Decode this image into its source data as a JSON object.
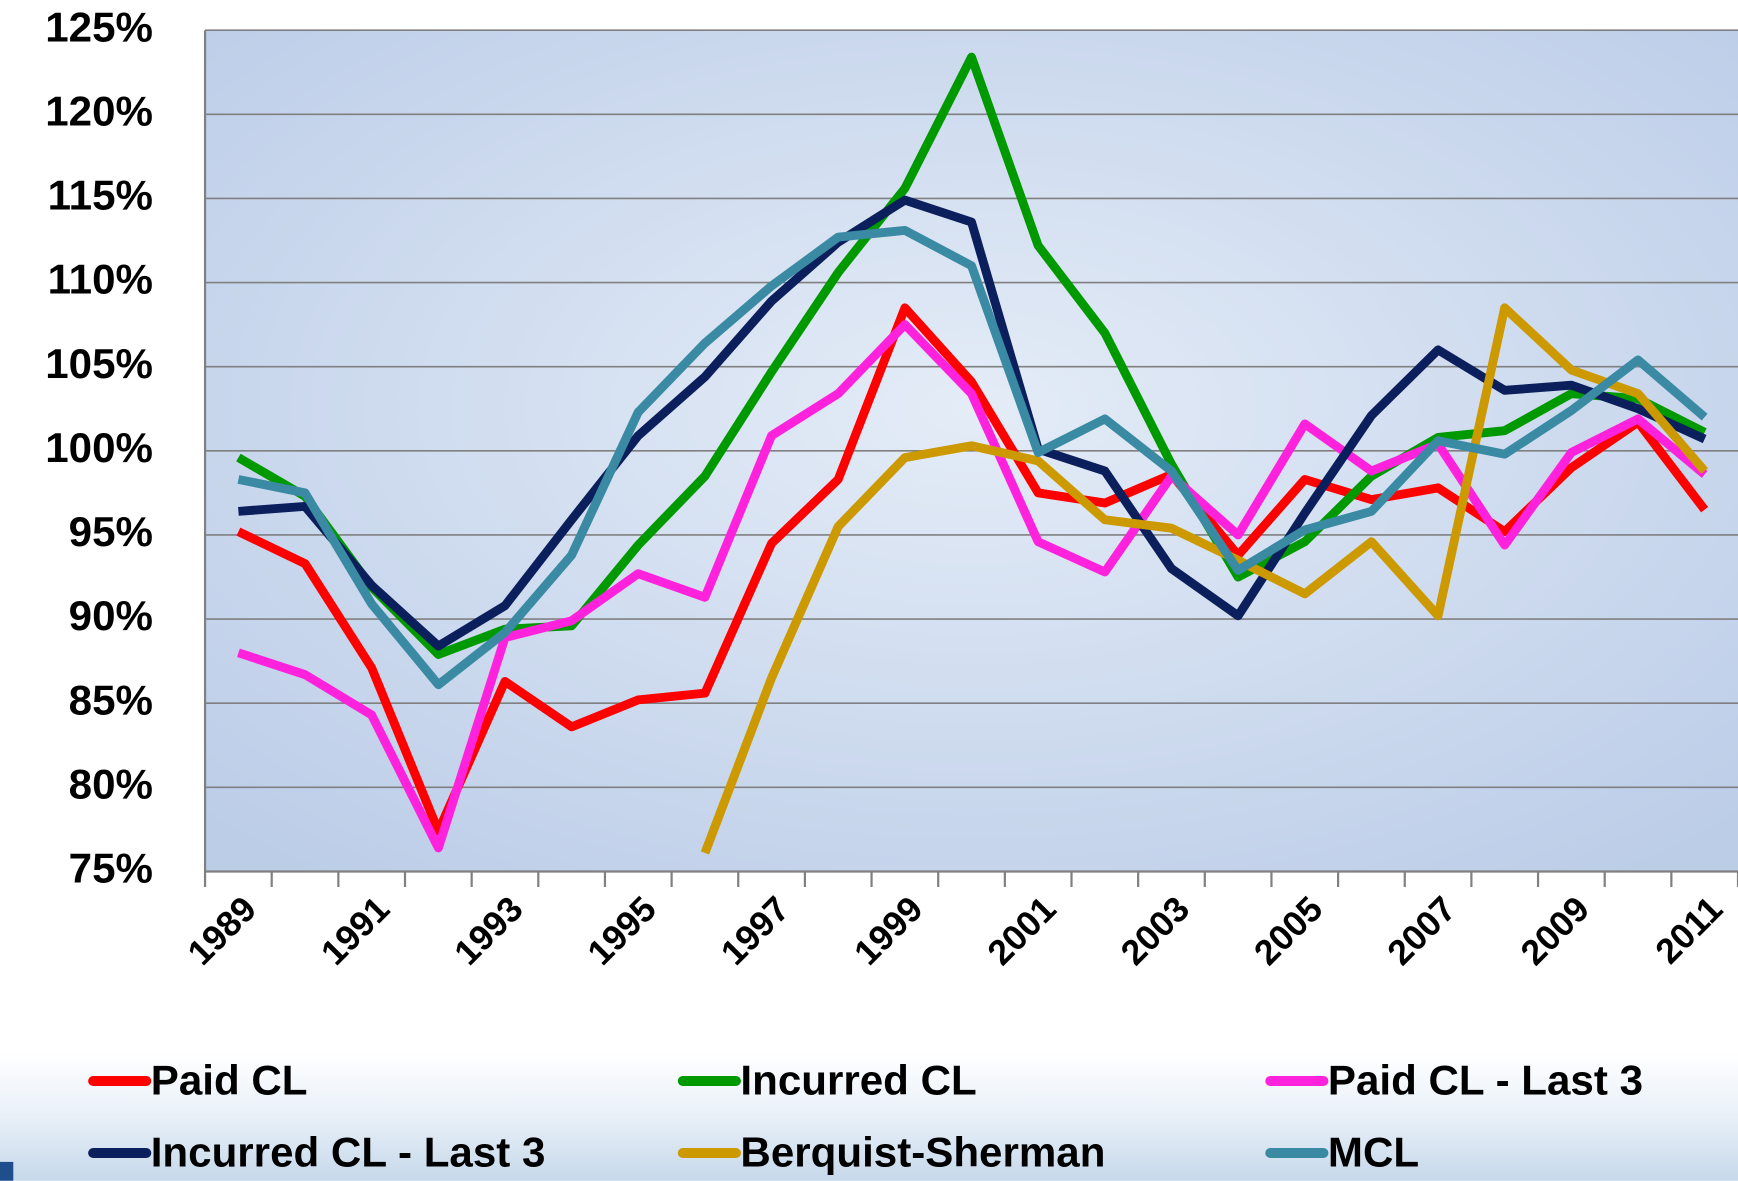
{
  "chart_data": {
    "type": "line",
    "categories": [
      "1989",
      null,
      "1991",
      null,
      "1993",
      null,
      "1995",
      null,
      "1997",
      null,
      "1999",
      null,
      "2001",
      null,
      "2003",
      null,
      "2005",
      null,
      "2007",
      null,
      "2009",
      null,
      "2011"
    ],
    "ylim": [
      75,
      125
    ],
    "yticks": [
      {
        "value": 75,
        "label": "75%"
      },
      {
        "value": 80,
        "label": "80%"
      },
      {
        "value": 85,
        "label": "85%"
      },
      {
        "value": 90,
        "label": "90%"
      },
      {
        "value": 95,
        "label": "95%"
      },
      {
        "value": 100,
        "label": "100%"
      },
      {
        "value": 105,
        "label": "105%"
      },
      {
        "value": 110,
        "label": "110%"
      },
      {
        "value": 115,
        "label": "115%"
      },
      {
        "value": 120,
        "label": "120%"
      },
      {
        "value": 125,
        "label": "125%"
      }
    ],
    "grid": true,
    "legend": "bottom",
    "series": [
      {
        "name": "Paid CL",
        "color": "#ff0000",
        "values": [
          95.2,
          93.3,
          87.1,
          77.4,
          86.3,
          83.6,
          85.2,
          85.6,
          94.5,
          98.3,
          108.5,
          104.1,
          97.5,
          96.9,
          98.6,
          93.8,
          98.3,
          97.1,
          97.8,
          95.2,
          99.0,
          101.7,
          96.5
        ]
      },
      {
        "name": "Incurred CL",
        "color": "#009900",
        "values": [
          99.6,
          97.3,
          91.9,
          87.9,
          89.4,
          89.6,
          94.4,
          98.5,
          104.7,
          110.6,
          115.6,
          123.4,
          112.2,
          107.0,
          99.2,
          92.5,
          94.6,
          98.5,
          100.8,
          101.2,
          103.4,
          103.1,
          101.1
        ]
      },
      {
        "name": "Paid CL - Last 3",
        "color": "#ff22dd",
        "values": [
          88.0,
          86.7,
          84.3,
          76.4,
          88.9,
          89.9,
          92.7,
          91.3,
          100.9,
          103.4,
          107.5,
          103.4,
          94.6,
          92.8,
          98.5,
          95.0,
          101.6,
          98.8,
          100.4,
          94.4,
          99.9,
          101.9,
          98.6
        ]
      },
      {
        "name": "Incurred CL - Last 3",
        "color": "#0a1f5c",
        "values": [
          96.4,
          96.7,
          92.0,
          88.4,
          90.8,
          95.9,
          100.9,
          104.4,
          108.9,
          112.4,
          114.9,
          113.6,
          100.1,
          98.8,
          93.0,
          90.2,
          96.3,
          102.1,
          106.0,
          103.6,
          103.9,
          102.5,
          100.7
        ]
      },
      {
        "name": "Berquist-Sherman",
        "color": "#cc9900",
        "values": [
          null,
          null,
          null,
          null,
          null,
          null,
          null,
          76.1,
          86.5,
          95.5,
          99.6,
          100.3,
          99.4,
          95.9,
          95.4,
          93.5,
          91.5,
          94.6,
          90.2,
          108.5,
          104.8,
          103.4,
          98.8
        ]
      },
      {
        "name": "MCL",
        "color": "#3a8aa3",
        "values": [
          98.3,
          97.5,
          90.9,
          86.1,
          89.2,
          93.8,
          102.3,
          106.4,
          109.8,
          112.7,
          113.1,
          111.0,
          99.9,
          101.9,
          98.8,
          92.9,
          95.3,
          96.4,
          100.6,
          99.8,
          102.4,
          105.4,
          102.0
        ]
      }
    ]
  }
}
